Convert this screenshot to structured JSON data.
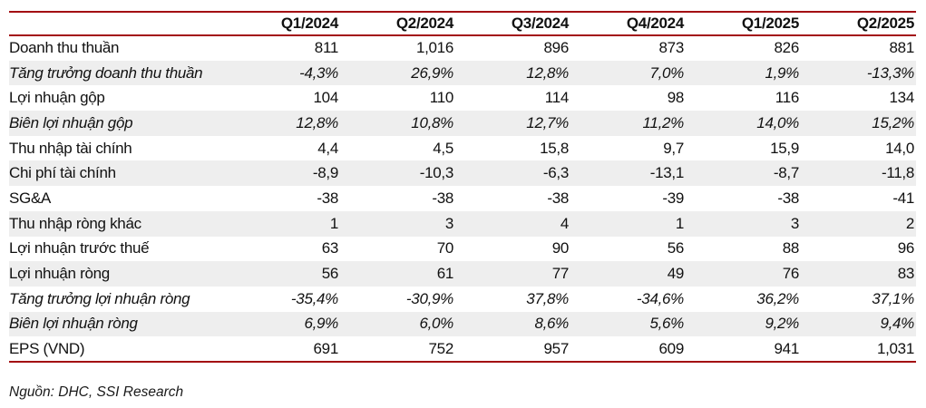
{
  "table": {
    "columns": [
      "",
      "Q1/2024",
      "Q2/2024",
      "Q3/2024",
      "Q4/2024",
      "Q1/2025",
      "Q2/2025"
    ],
    "rows": [
      {
        "label": "Doanh thu thuần",
        "italic": false,
        "values": [
          "811",
          "1,016",
          "896",
          "873",
          "826",
          "881"
        ]
      },
      {
        "label": "Tăng trưởng doanh thu thuần",
        "italic": true,
        "values": [
          "-4,3%",
          "26,9%",
          "12,8%",
          "7,0%",
          "1,9%",
          "-13,3%"
        ]
      },
      {
        "label": "Lợi nhuận gộp",
        "italic": false,
        "values": [
          "104",
          "110",
          "114",
          "98",
          "116",
          "134"
        ]
      },
      {
        "label": "Biên lợi nhuận gộp",
        "italic": true,
        "values": [
          "12,8%",
          "10,8%",
          "12,7%",
          "11,2%",
          "14,0%",
          "15,2%"
        ]
      },
      {
        "label": "Thu nhập tài chính",
        "italic": false,
        "values": [
          "4,4",
          "4,5",
          "15,8",
          "9,7",
          "15,9",
          "14,0"
        ]
      },
      {
        "label": "Chi phí tài chính",
        "italic": false,
        "values": [
          "-8,9",
          "-10,3",
          "-6,3",
          "-13,1",
          "-8,7",
          "-11,8"
        ]
      },
      {
        "label": "SG&A",
        "italic": false,
        "values": [
          "-38",
          "-38",
          "-38",
          "-39",
          "-38",
          "-41"
        ]
      },
      {
        "label": "Thu nhập ròng khác",
        "italic": false,
        "values": [
          "1",
          "3",
          "4",
          "1",
          "3",
          "2"
        ]
      },
      {
        "label": "Lợi nhuận trước thuế",
        "italic": false,
        "values": [
          "63",
          "70",
          "90",
          "56",
          "88",
          "96"
        ]
      },
      {
        "label": "Lợi nhuận ròng",
        "italic": false,
        "values": [
          "56",
          "61",
          "77",
          "49",
          "76",
          "83"
        ]
      },
      {
        "label": "Tăng trưởng lợi nhuận ròng",
        "italic": true,
        "values": [
          "-35,4%",
          "-30,9%",
          "37,8%",
          "-34,6%",
          "36,2%",
          "37,1%"
        ]
      },
      {
        "label": "Biên lợi nhuận ròng",
        "italic": true,
        "values": [
          "6,9%",
          "6,0%",
          "8,6%",
          "5,6%",
          "9,2%",
          "9,4%"
        ]
      },
      {
        "label": "EPS (VND)",
        "italic": false,
        "values": [
          "691",
          "752",
          "957",
          "609",
          "941",
          "1,031"
        ]
      }
    ]
  },
  "footer": {
    "source_note": "Nguồn: DHC, SSI Research"
  },
  "colors": {
    "accent_red": "#A30C12",
    "stripe_gray": "#EEEEEE",
    "text": "#111111"
  }
}
